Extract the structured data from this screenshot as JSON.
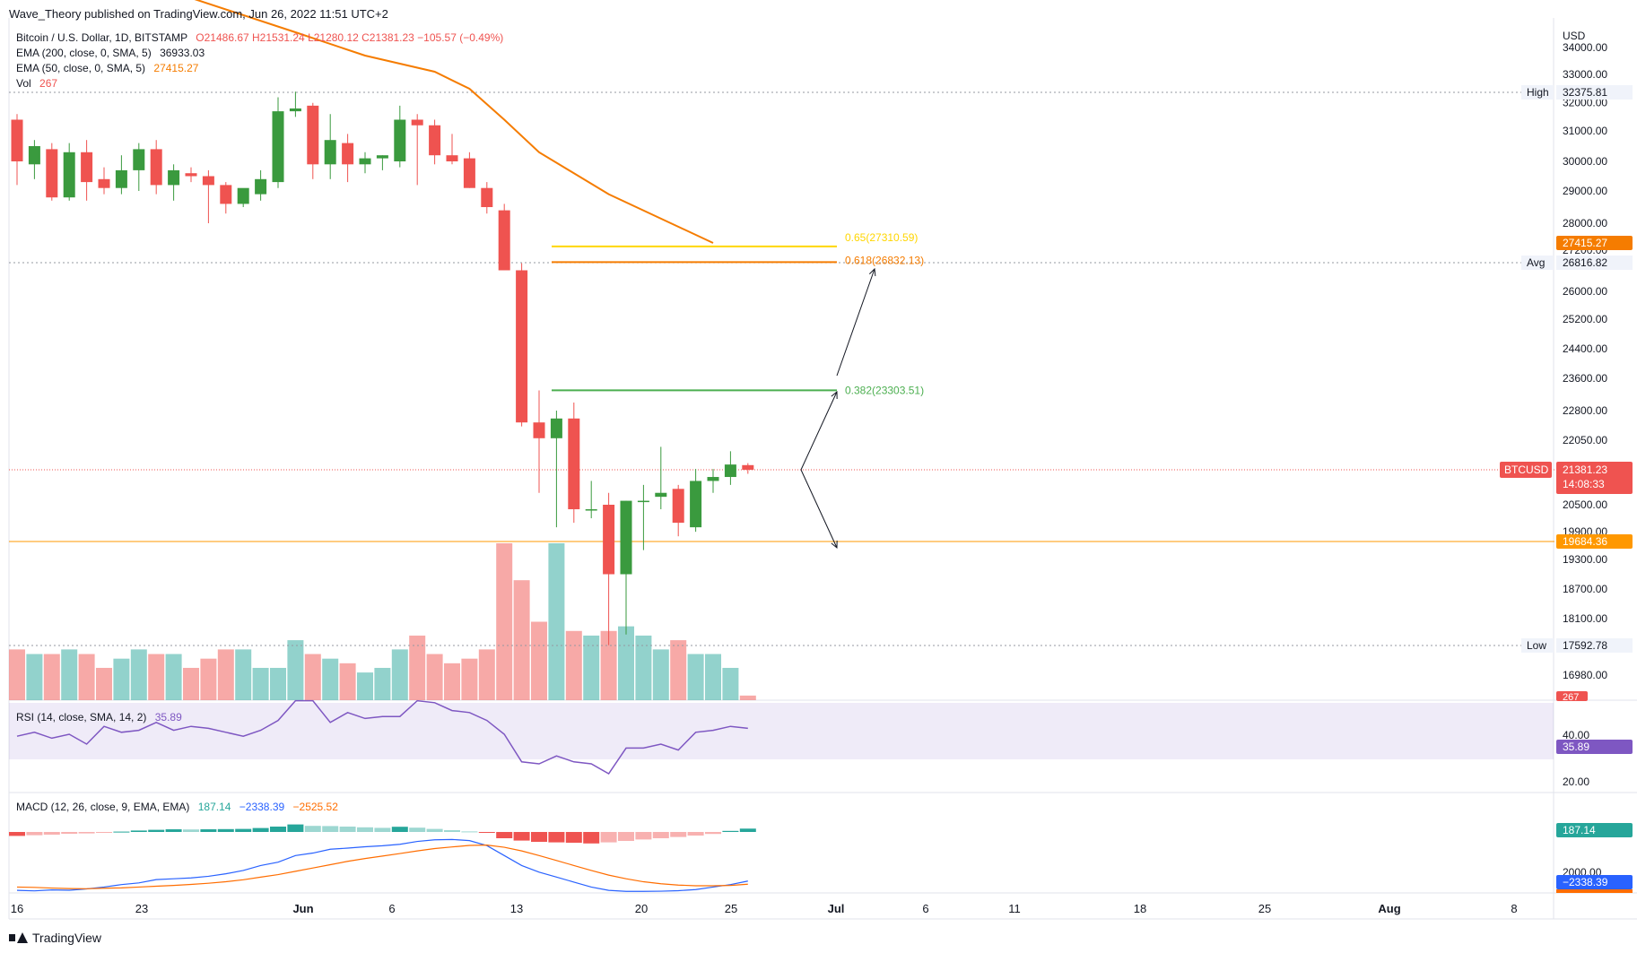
{
  "header": {
    "publisher": "Wave_Theory published on TradingView.com, Jun 26, 2022 11:51 UTC+2"
  },
  "legend": {
    "symbol": "Bitcoin / U.S. Dollar, 1D, BITSTAMP",
    "ohlc": "O21486.67 H21531.24 L21280.12 C21381.23 −105.57 (−0.49%)",
    "ema200_label": "EMA (200, close, 0, SMA, 5)",
    "ema200_value": "36933.03",
    "ema50_label": "EMA (50, close, 0, SMA, 5)",
    "ema50_value": "27415.27",
    "vol_label": "Vol",
    "vol_value": "267"
  },
  "rsi_legend": {
    "label": "RSI (14, close, SMA, 14, 2)",
    "value": "35.89"
  },
  "macd_legend": {
    "label": "MACD (12, 26, close, 9, EMA, EMA)",
    "hist": "187.14",
    "macd": "−2338.39",
    "signal": "−2525.52"
  },
  "footer": {
    "brand": "TradingView"
  },
  "colors": {
    "up": "#26a69a",
    "up_body": "#3a9a3e",
    "down": "#ef5350",
    "ema50": "#f57c00",
    "fib382": "#4caf50",
    "fib618": "#f57c00",
    "fib65": "#ffd600",
    "rsi": "#7e57c2",
    "macd": "#2962ff",
    "signal": "#ff6d00",
    "support": "#ff9800"
  },
  "chart_data": {
    "type": "candlestick",
    "price_axis": {
      "currency": "USD",
      "ticks": [
        "34000.00",
        "33000.00",
        "32000.00",
        "31000.00",
        "30000.00",
        "29000.00",
        "28000.00",
        "27200.00",
        "26000.00",
        "25200.00",
        "24400.00",
        "23600.00",
        "22800.00",
        "22050.00",
        "20500.00",
        "19900.00",
        "19300.00",
        "18700.00",
        "18100.00",
        "16980.00"
      ]
    },
    "time_axis": {
      "ticks": [
        "16",
        "23",
        "Jun",
        "6",
        "13",
        "20",
        "25",
        "Jul",
        "6",
        "11",
        "18",
        "25",
        "Aug",
        "8"
      ]
    },
    "candles": [
      {
        "o": 31400,
        "h": 31600,
        "l": 29200,
        "c": 30000
      },
      {
        "o": 29900,
        "h": 30700,
        "l": 29400,
        "c": 30500
      },
      {
        "o": 30400,
        "h": 30600,
        "l": 28700,
        "c": 28800
      },
      {
        "o": 28800,
        "h": 30600,
        "l": 28700,
        "c": 30300
      },
      {
        "o": 30300,
        "h": 30700,
        "l": 28700,
        "c": 29300
      },
      {
        "o": 29400,
        "h": 29800,
        "l": 28900,
        "c": 29100
      },
      {
        "o": 29100,
        "h": 30200,
        "l": 28900,
        "c": 29700
      },
      {
        "o": 29700,
        "h": 30600,
        "l": 29000,
        "c": 30400
      },
      {
        "o": 30400,
        "h": 30700,
        "l": 28900,
        "c": 29200
      },
      {
        "o": 29200,
        "h": 29900,
        "l": 28700,
        "c": 29700
      },
      {
        "o": 29600,
        "h": 29800,
        "l": 29300,
        "c": 29500
      },
      {
        "o": 29500,
        "h": 29700,
        "l": 28000,
        "c": 29200
      },
      {
        "o": 29200,
        "h": 29300,
        "l": 28300,
        "c": 28600
      },
      {
        "o": 28600,
        "h": 29000,
        "l": 28500,
        "c": 29100
      },
      {
        "o": 28900,
        "h": 29700,
        "l": 28700,
        "c": 29400
      },
      {
        "o": 29300,
        "h": 32200,
        "l": 29100,
        "c": 31700
      },
      {
        "o": 31700,
        "h": 32400,
        "l": 31500,
        "c": 31800
      },
      {
        "o": 31900,
        "h": 32000,
        "l": 29400,
        "c": 29900
      },
      {
        "o": 29900,
        "h": 31600,
        "l": 29400,
        "c": 30700
      },
      {
        "o": 30600,
        "h": 30900,
        "l": 29300,
        "c": 29900
      },
      {
        "o": 29900,
        "h": 30300,
        "l": 29600,
        "c": 30100
      },
      {
        "o": 30100,
        "h": 30200,
        "l": 29700,
        "c": 30200
      },
      {
        "o": 30000,
        "h": 31900,
        "l": 29800,
        "c": 31400
      },
      {
        "o": 31400,
        "h": 31600,
        "l": 29200,
        "c": 31200
      },
      {
        "o": 31200,
        "h": 31400,
        "l": 29900,
        "c": 30200
      },
      {
        "o": 30200,
        "h": 30900,
        "l": 29900,
        "c": 30000
      },
      {
        "o": 30100,
        "h": 30300,
        "l": 29100,
        "c": 29100
      },
      {
        "o": 29100,
        "h": 29300,
        "l": 28300,
        "c": 28500
      },
      {
        "o": 28400,
        "h": 28600,
        "l": 26600,
        "c": 26600
      },
      {
        "o": 26600,
        "h": 26800,
        "l": 22400,
        "c": 22500
      },
      {
        "o": 22500,
        "h": 23300,
        "l": 20800,
        "c": 22100
      },
      {
        "o": 22100,
        "h": 22800,
        "l": 20000,
        "c": 22600
      },
      {
        "o": 22600,
        "h": 23000,
        "l": 20100,
        "c": 20400
      },
      {
        "o": 20400,
        "h": 21100,
        "l": 20200,
        "c": 20400
      },
      {
        "o": 20500,
        "h": 20800,
        "l": 17600,
        "c": 19000
      },
      {
        "o": 19000,
        "h": 20600,
        "l": 17800,
        "c": 20600
      },
      {
        "o": 20600,
        "h": 21000,
        "l": 19500,
        "c": 20600
      },
      {
        "o": 20700,
        "h": 21900,
        "l": 20400,
        "c": 20800
      },
      {
        "o": 20900,
        "h": 21000,
        "l": 19800,
        "c": 20100
      },
      {
        "o": 20000,
        "h": 21400,
        "l": 19900,
        "c": 21100
      },
      {
        "o": 21100,
        "h": 21400,
        "l": 20800,
        "c": 21200
      },
      {
        "o": 21200,
        "h": 21800,
        "l": 21000,
        "c": 21500
      },
      {
        "o": 21486.67,
        "h": 21531.24,
        "l": 21280.12,
        "c": 21381.23
      }
    ],
    "volume": [
      11,
      10,
      10,
      11,
      10,
      7,
      9,
      11,
      10,
      10,
      7,
      9,
      11,
      11,
      7,
      7,
      13,
      10,
      9,
      8,
      6,
      7,
      11,
      14,
      10,
      8,
      9,
      11,
      34,
      26,
      17,
      34,
      15,
      14,
      15,
      16,
      14,
      11,
      13,
      10,
      10,
      7,
      1
    ],
    "ema50": [
      [
        0,
        37100
      ],
      [
        8,
        36000
      ],
      [
        16,
        34500
      ],
      [
        20,
        33700
      ],
      [
        24,
        33100
      ],
      [
        26,
        32500
      ],
      [
        28,
        31400
      ],
      [
        30,
        30300
      ],
      [
        34,
        28900
      ],
      [
        40,
        27415.27
      ]
    ],
    "levels": [
      {
        "name": "High",
        "value": "32375.81"
      },
      {
        "name": "Avg",
        "value": "26816.82"
      },
      {
        "name": "Low",
        "value": "17592.78"
      },
      {
        "name": "EMA50",
        "value": "27415.27"
      },
      {
        "name": "BTCUSD",
        "value": "21381.23",
        "countdown": "14:08:33"
      },
      {
        "name": "Support",
        "value": "19684.36"
      },
      {
        "name": "Vol",
        "value": "267"
      }
    ],
    "fib": [
      {
        "label": "0.65(27310.59)",
        "value": 27310.59
      },
      {
        "label": "0.618(26832.13)",
        "value": 26832.13
      },
      {
        "label": "0.382(23303.51)",
        "value": 23303.51
      }
    ],
    "rsi": {
      "values": [
        44,
        46,
        43,
        45,
        40,
        49,
        46,
        47,
        51,
        47,
        49,
        48,
        46,
        44,
        47,
        52,
        62,
        62,
        51,
        56,
        53,
        54,
        54,
        62,
        61,
        57,
        56,
        52,
        45,
        31,
        30,
        34,
        31,
        30,
        25,
        38,
        38,
        40,
        37,
        46,
        47,
        49,
        48
      ],
      "axis": [
        "40.00",
        "20.00"
      ],
      "band": [
        30,
        70
      ]
    },
    "macd": {
      "hist": [
        -220,
        -180,
        -150,
        -100,
        -80,
        -40,
        20,
        80,
        120,
        150,
        140,
        150,
        160,
        170,
        220,
        300,
        420,
        340,
        330,
        300,
        260,
        230,
        290,
        240,
        170,
        100,
        30,
        -40,
        -350,
        -480,
        -550,
        -580,
        -600,
        -640,
        -580,
        -500,
        -420,
        -350,
        -280,
        -200,
        -110,
        60,
        187.14
      ],
      "macd": [
        -2900,
        -2930,
        -2870,
        -2890,
        -2810,
        -2700,
        -2550,
        -2450,
        -2250,
        -2200,
        -2150,
        -2050,
        -1900,
        -1700,
        -1400,
        -1200,
        -800,
        -650,
        -420,
        -350,
        -270,
        -210,
        -120,
        50,
        150,
        170,
        100,
        -200,
        -800,
        -1400,
        -1800,
        -2100,
        -2400,
        -2700,
        -2900,
        -2960,
        -2960,
        -2950,
        -2920,
        -2850,
        -2700,
        -2550,
        -2338.39
      ],
      "signal": [
        -2700,
        -2720,
        -2760,
        -2790,
        -2800,
        -2770,
        -2750,
        -2700,
        -2650,
        -2600,
        -2540,
        -2470,
        -2380,
        -2260,
        -2100,
        -1950,
        -1750,
        -1550,
        -1350,
        -1150,
        -980,
        -830,
        -680,
        -520,
        -380,
        -280,
        -190,
        -170,
        -300,
        -520,
        -800,
        -1100,
        -1400,
        -1700,
        -1980,
        -2200,
        -2380,
        -2500,
        -2580,
        -2620,
        -2620,
        -2600,
        -2525.52
      ],
      "axis": [
        "2000.00"
      ],
      "hist_label": "187.14",
      "macd_label": "−2338.39",
      "signal_label": "−2525.52"
    }
  }
}
